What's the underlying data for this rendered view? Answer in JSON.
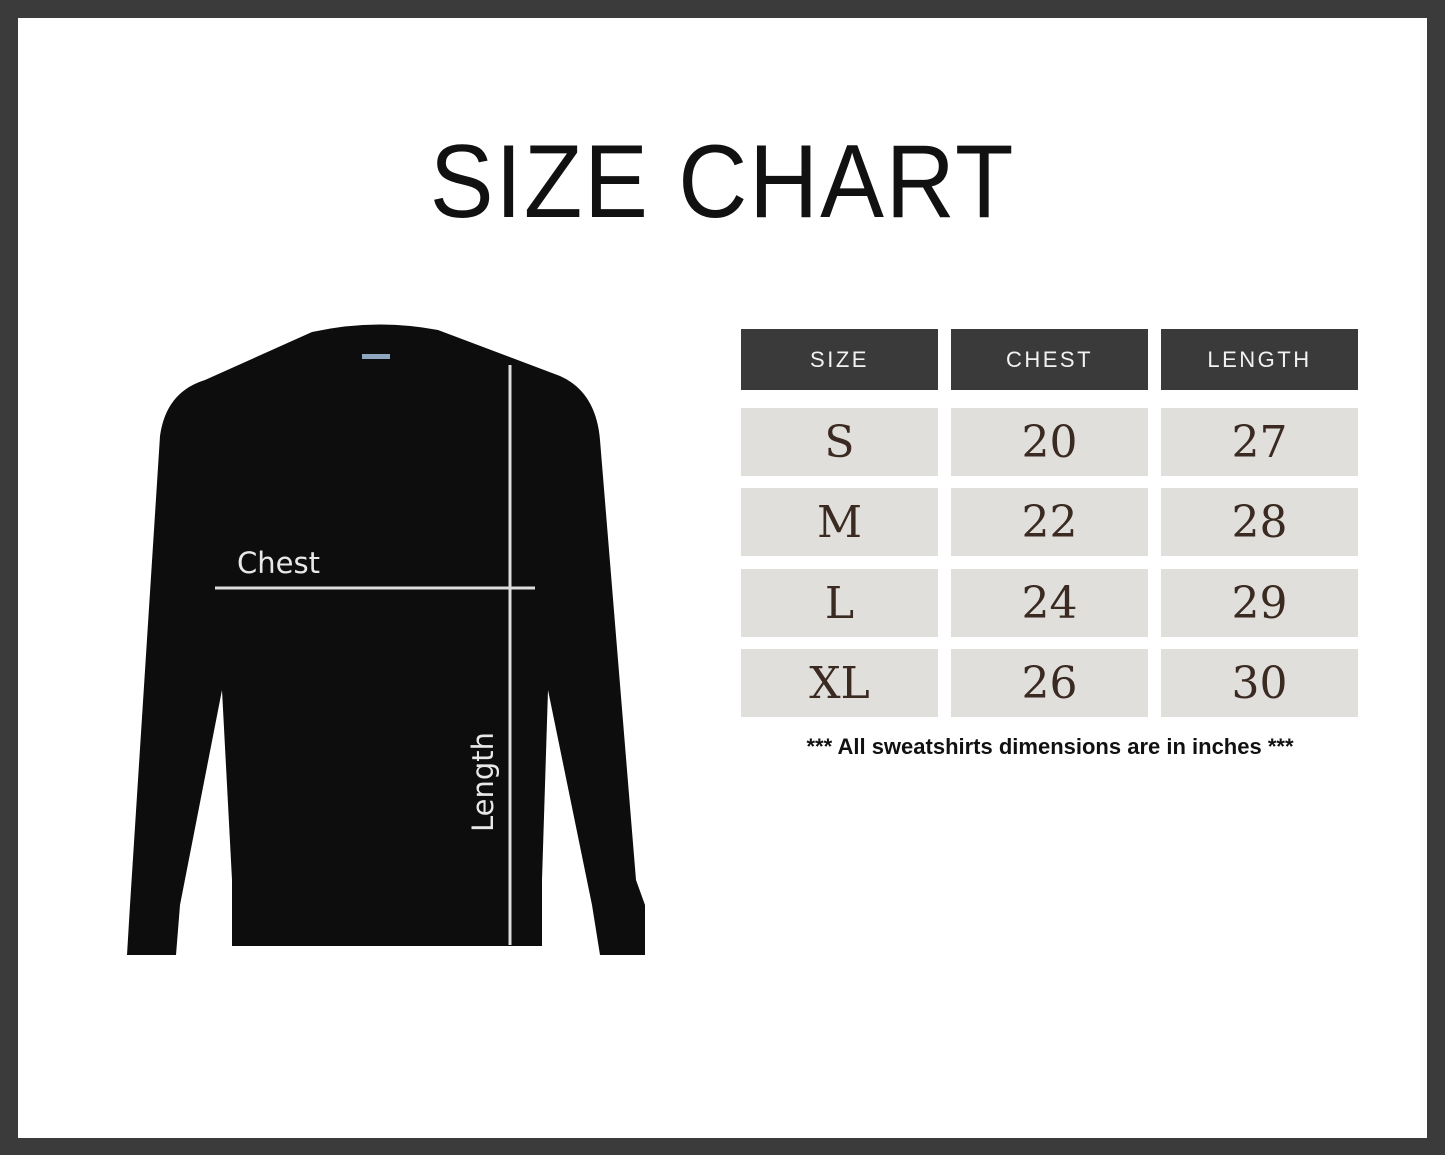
{
  "title": "SIZE CHART",
  "diagram": {
    "chest_label": "Chest",
    "length_label": "Length",
    "garment_color": "#0d0d0d"
  },
  "table": {
    "headers": [
      "SIZE",
      "CHEST",
      "LENGTH"
    ],
    "rows": [
      [
        "S",
        "20",
        "27"
      ],
      [
        "M",
        "22",
        "28"
      ],
      [
        "L",
        "24",
        "29"
      ],
      [
        "XL",
        "26",
        "30"
      ]
    ]
  },
  "note": "*** All sweatshirts dimensions are in inches ***",
  "colors": {
    "frame": "#3b3b3b",
    "header_bg": "#3a3a3a",
    "cell_bg": "#e0dfdb",
    "cell_text": "#3a2a22"
  }
}
